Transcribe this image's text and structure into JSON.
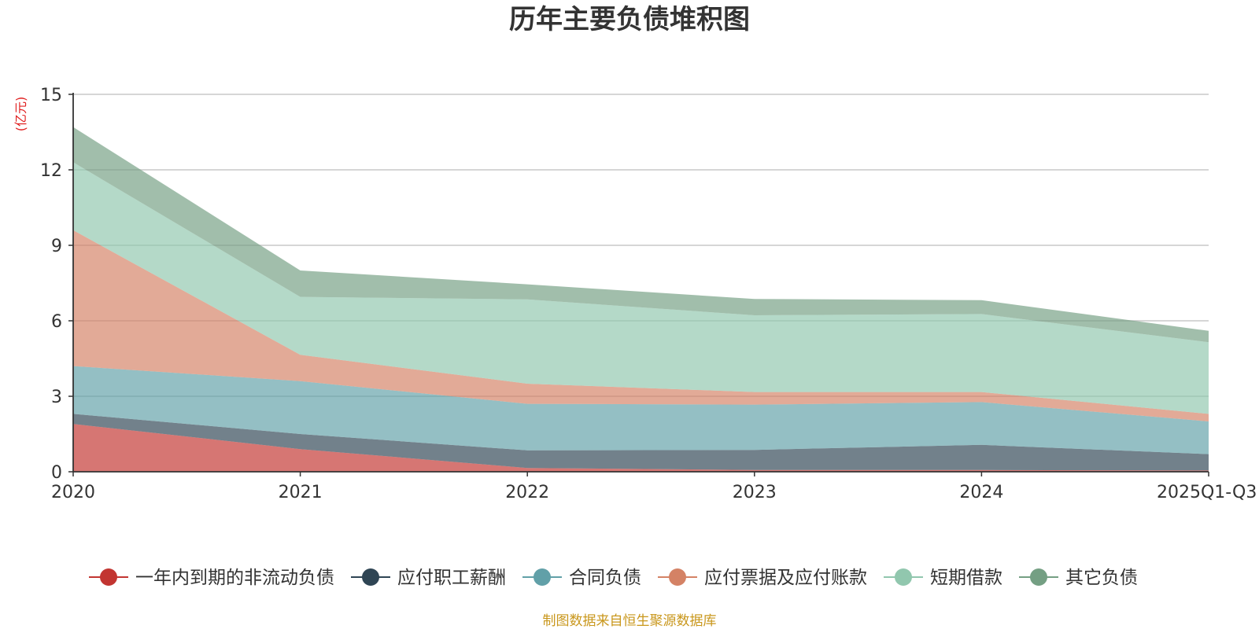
{
  "chart_data": {
    "type": "area",
    "stacked": true,
    "title": "历年主要负债堆积图",
    "unit_label": "(亿元)",
    "categories": [
      "2020",
      "2021",
      "2022",
      "2023",
      "2024",
      "2025Q1-Q3"
    ],
    "ylim": [
      0,
      15
    ],
    "yticks": [
      0,
      3,
      6,
      9,
      12,
      15
    ],
    "grid": true,
    "legend_position": "bottom",
    "series": [
      {
        "name": "一年内到期的非流动负债",
        "color": "#c23531",
        "values": [
          1.9,
          0.9,
          0.15,
          0.07,
          0.07,
          0.05
        ]
      },
      {
        "name": "应付职工薪酬",
        "color": "#2f4554",
        "values": [
          0.4,
          0.6,
          0.7,
          0.8,
          1.0,
          0.65
        ]
      },
      {
        "name": "合同负债",
        "color": "#61a0a8",
        "values": [
          1.9,
          2.1,
          1.85,
          1.8,
          1.7,
          1.3
        ]
      },
      {
        "name": "应付票据及应付账款",
        "color": "#d48265",
        "values": [
          5.4,
          1.05,
          0.8,
          0.5,
          0.4,
          0.3
        ]
      },
      {
        "name": "短期借款",
        "color": "#91c7ae",
        "values": [
          2.7,
          2.3,
          3.35,
          3.05,
          3.1,
          2.85
        ]
      },
      {
        "name": "其它负债",
        "color": "#749f83",
        "values": [
          1.4,
          1.05,
          0.6,
          0.65,
          0.55,
          0.45
        ]
      }
    ]
  },
  "source_note": "制图数据来自恒生聚源数据库"
}
